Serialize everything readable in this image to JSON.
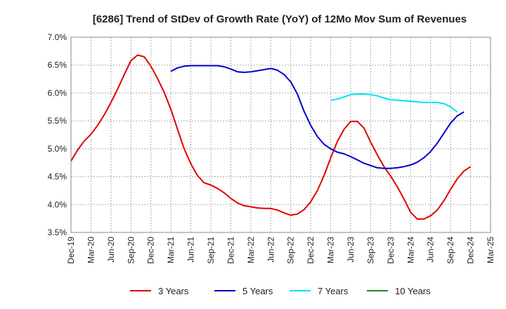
{
  "chart_data": {
    "type": "line",
    "title": "[6286]  Trend of StDev of Growth Rate (YoY) of 12Mo Mov Sum of Revenues",
    "xlabel": "",
    "ylabel": "",
    "ylim": [
      3.5,
      7.0
    ],
    "grid": true,
    "legend_position": "bottom",
    "y_ticks": [
      "3.5%",
      "4.0%",
      "4.5%",
      "5.0%",
      "5.5%",
      "6.0%",
      "6.5%",
      "7.0%"
    ],
    "x_ticks": [
      "Dec-19",
      "Mar-20",
      "Jun-20",
      "Sep-20",
      "Dec-20",
      "Mar-21",
      "Jun-21",
      "Sep-21",
      "Dec-21",
      "Mar-22",
      "Jun-22",
      "Sep-22",
      "Dec-22",
      "Mar-23",
      "Jun-23",
      "Sep-23",
      "Dec-23",
      "Mar-24",
      "Jun-24",
      "Sep-24",
      "Dec-24",
      "Mar-25"
    ],
    "series": [
      {
        "name": "3 Years",
        "color": "#e00000",
        "start_index": 0,
        "values": [
          4.78,
          4.98,
          5.14,
          5.26,
          5.42,
          5.61,
          5.83,
          6.07,
          6.33,
          6.58,
          6.68,
          6.65,
          6.48,
          6.26,
          6.01,
          5.71,
          5.35,
          5.0,
          4.73,
          4.52,
          4.39,
          4.35,
          4.29,
          4.21,
          4.11,
          4.03,
          3.98,
          3.96,
          3.94,
          3.93,
          3.93,
          3.9,
          3.85,
          3.81,
          3.83,
          3.91,
          4.05,
          4.25,
          4.52,
          4.84,
          5.13,
          5.35,
          5.49,
          5.49,
          5.37,
          5.12,
          4.89,
          4.68,
          4.51,
          4.32,
          4.1,
          3.86,
          3.74,
          3.74,
          3.8,
          3.9,
          4.07,
          4.27,
          4.46,
          4.6,
          4.68
        ]
      },
      {
        "name": "5 Years",
        "color": "#0000cc",
        "start_index": 15,
        "values": [
          6.39,
          6.45,
          6.48,
          6.49,
          6.49,
          6.49,
          6.49,
          6.49,
          6.47,
          6.43,
          6.38,
          6.37,
          6.38,
          6.4,
          6.42,
          6.44,
          6.41,
          6.33,
          6.2,
          5.98,
          5.67,
          5.42,
          5.22,
          5.08,
          5.0,
          4.94,
          4.91,
          4.86,
          4.8,
          4.74,
          4.7,
          4.66,
          4.65,
          4.65,
          4.66,
          4.68,
          4.71,
          4.76,
          4.84,
          4.95,
          5.1,
          5.28,
          5.46,
          5.59,
          5.66
        ]
      },
      {
        "name": "7 Years",
        "color": "#00e5ee",
        "start_index": 39,
        "values": [
          5.87,
          5.89,
          5.93,
          5.97,
          5.98,
          5.98,
          5.97,
          5.95,
          5.91,
          5.88,
          5.87,
          5.86,
          5.85,
          5.84,
          5.83,
          5.83,
          5.83,
          5.81,
          5.75,
          5.66
        ]
      },
      {
        "name": "10 Years",
        "color": "#228b22",
        "start_index": 0,
        "values": []
      }
    ]
  }
}
